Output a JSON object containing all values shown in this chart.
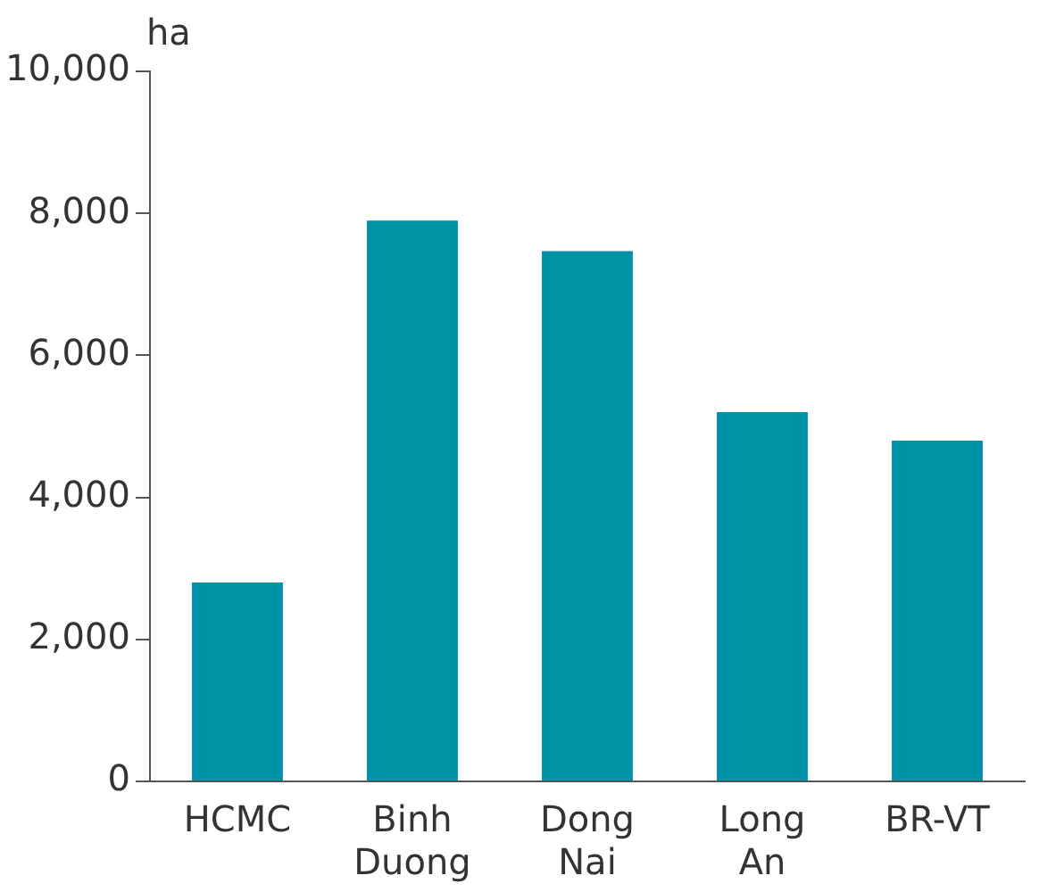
{
  "chart_data": {
    "type": "bar",
    "ylabel": "ha",
    "categories": [
      "HCMC",
      "Binh Duong",
      "Dong Nai",
      "Long An",
      "BR-VT"
    ],
    "values": [
      2800,
      7900,
      7470,
      5200,
      4800
    ],
    "color": "#0093a8",
    "ylim": [
      0,
      10000
    ],
    "yticks": [
      0,
      {
        "value": 2000,
        "label": "2,000"
      },
      {
        "value": 4000,
        "label": "4,000"
      },
      {
        "value": 6000,
        "label": "6,000"
      },
      {
        "value": 8000,
        "label": "8,000"
      },
      {
        "value": 10000,
        "label": "10,000"
      }
    ],
    "grid": false,
    "legend": false
  }
}
